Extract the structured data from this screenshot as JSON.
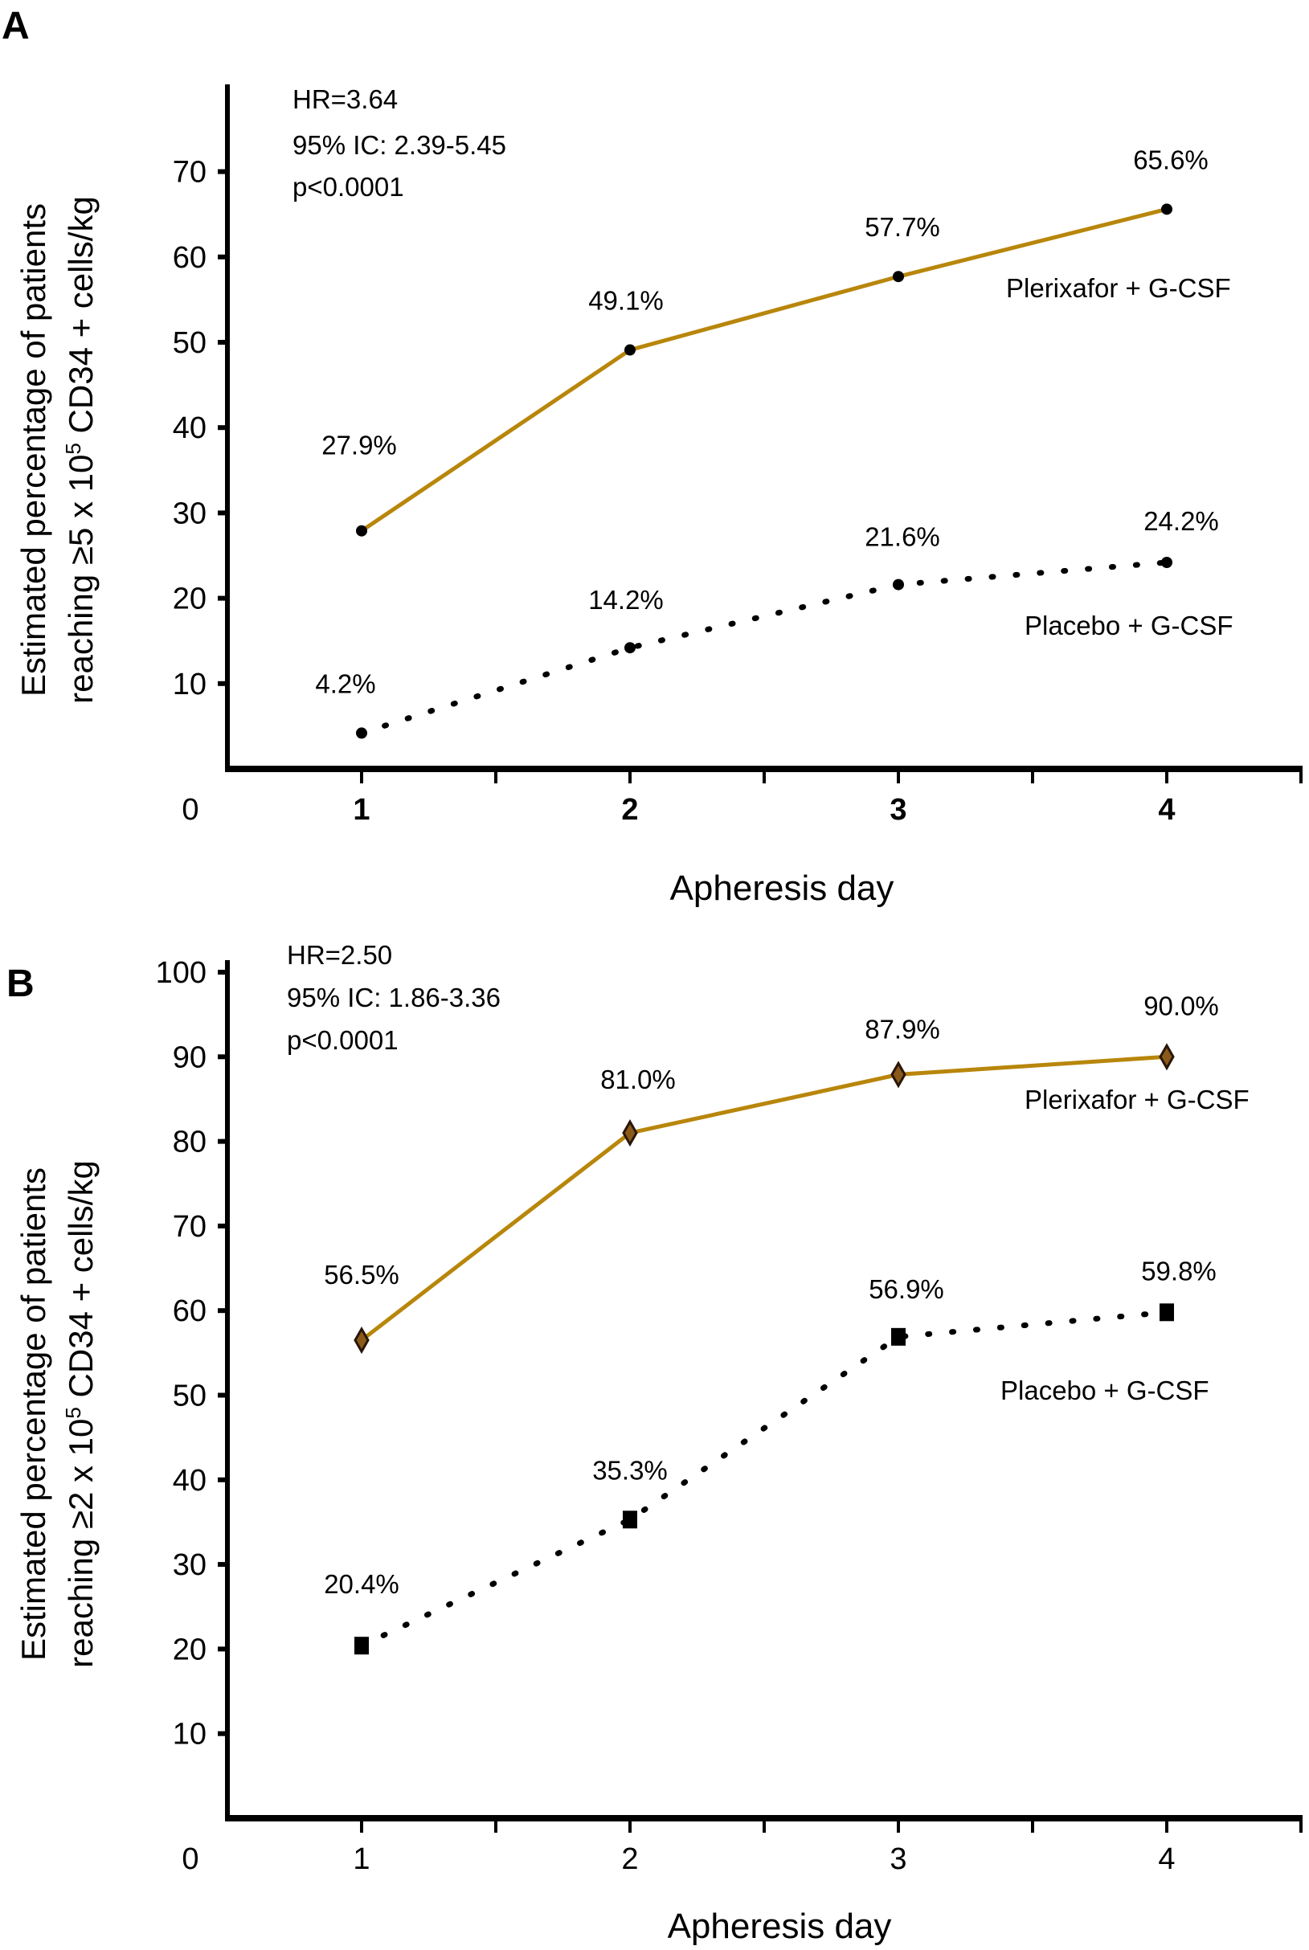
{
  "chart_data": [
    {
      "panel": "A",
      "type": "line",
      "xlabel": "Apheresis day",
      "ylabel_line1": "Estimated percentage of patients",
      "ylabel_line2_prefix": "reaching ≥5 x 10",
      "ylabel_line2_sup": "5",
      "ylabel_line2_suffix": " CD34 + cells/kg",
      "x": [
        1,
        2,
        3,
        4
      ],
      "x_ticks": [
        "0",
        "1",
        "2",
        "3",
        "4"
      ],
      "y_ticks": [
        10,
        20,
        30,
        40,
        50,
        60,
        70
      ],
      "xlim": [
        0.5,
        4.5
      ],
      "ylim": [
        0,
        78
      ],
      "grid": false,
      "stats": [
        "HR=3.64",
        "95% IC: 2.39-5.45",
        "p<0.0001"
      ],
      "series": [
        {
          "name": "Plerixafor + G-CSF",
          "style": "solid",
          "marker": "dot",
          "color": "#b8860b",
          "values": [
            27.9,
            49.1,
            57.7,
            65.6
          ],
          "labels": [
            "27.9%",
            "49.1%",
            "57.7%",
            "65.6%"
          ]
        },
        {
          "name": "Placebo + G-CSF",
          "style": "dotted",
          "marker": "dot",
          "color": "#000000",
          "values": [
            4.2,
            14.2,
            21.6,
            24.2
          ],
          "labels": [
            "4.2%",
            "14.2%",
            "21.6%",
            "24.2%"
          ]
        }
      ]
    },
    {
      "panel": "B",
      "type": "line",
      "xlabel": "Apheresis day",
      "ylabel_line1": "Estimated percentage of patients",
      "ylabel_line2_prefix": "reaching ≥2 x 10",
      "ylabel_line2_sup": "5",
      "ylabel_line2_suffix": " CD34 + cells/kg",
      "x": [
        1,
        2,
        3,
        4
      ],
      "x_ticks": [
        "0",
        "1",
        "2",
        "3",
        "4"
      ],
      "y_ticks": [
        10,
        20,
        30,
        40,
        50,
        60,
        70,
        80,
        90,
        100
      ],
      "xlim": [
        0.5,
        4.5
      ],
      "ylim": [
        0,
        102
      ],
      "grid": false,
      "stats": [
        "HR=2.50",
        "95% IC: 1.86-3.36",
        "p<0.0001"
      ],
      "series": [
        {
          "name": "Plerixafor + G-CSF",
          "style": "solid",
          "marker": "diamond",
          "color": "#b8860b",
          "values": [
            56.5,
            81.0,
            87.9,
            90.0
          ],
          "labels": [
            "56.5%",
            "81.0%",
            "87.9%",
            "90.0%"
          ]
        },
        {
          "name": "Placebo + G-CSF",
          "style": "dotted",
          "marker": "square",
          "color": "#000000",
          "values": [
            20.4,
            35.3,
            56.9,
            59.8
          ],
          "labels": [
            "20.4%",
            "35.3%",
            "56.9%",
            "59.8%"
          ]
        }
      ]
    }
  ]
}
